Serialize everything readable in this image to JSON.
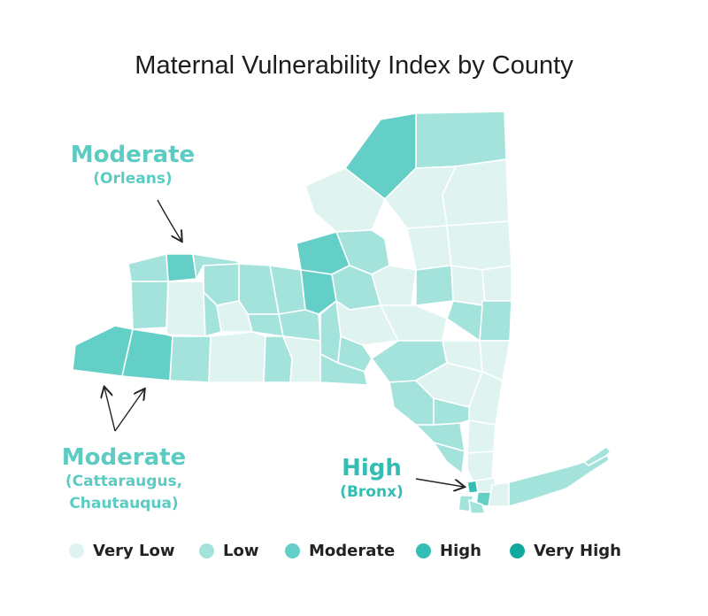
{
  "title": "Maternal Vulnerability Index by County",
  "colors": {
    "very_low": "#dff4f1",
    "low": "#a3e3dc",
    "moderate": "#63cfc6",
    "high": "#33bdb3",
    "very_high": "#11a99d",
    "callout_text": "#5ccbc2",
    "border": "#ffffff"
  },
  "callouts": {
    "orleans": {
      "level": "Moderate",
      "county": "(Orleans)"
    },
    "cattaraugus": {
      "level": "Moderate",
      "county_line1": "(Cattaraugus,",
      "county_line2": "Chautauqua)"
    },
    "bronx": {
      "level": "High",
      "county": "(Bronx)"
    }
  },
  "legend": [
    {
      "key": "very_low",
      "label": "Very Low",
      "color": "#dff4f1"
    },
    {
      "key": "low",
      "label": "Low",
      "color": "#a3e3dc"
    },
    {
      "key": "moderate",
      "label": "Moderate",
      "color": "#63cfc6"
    },
    {
      "key": "high",
      "label": "High",
      "color": "#33bdb3"
    },
    {
      "key": "very_high",
      "label": "Very High",
      "color": "#11a99d"
    }
  ]
}
